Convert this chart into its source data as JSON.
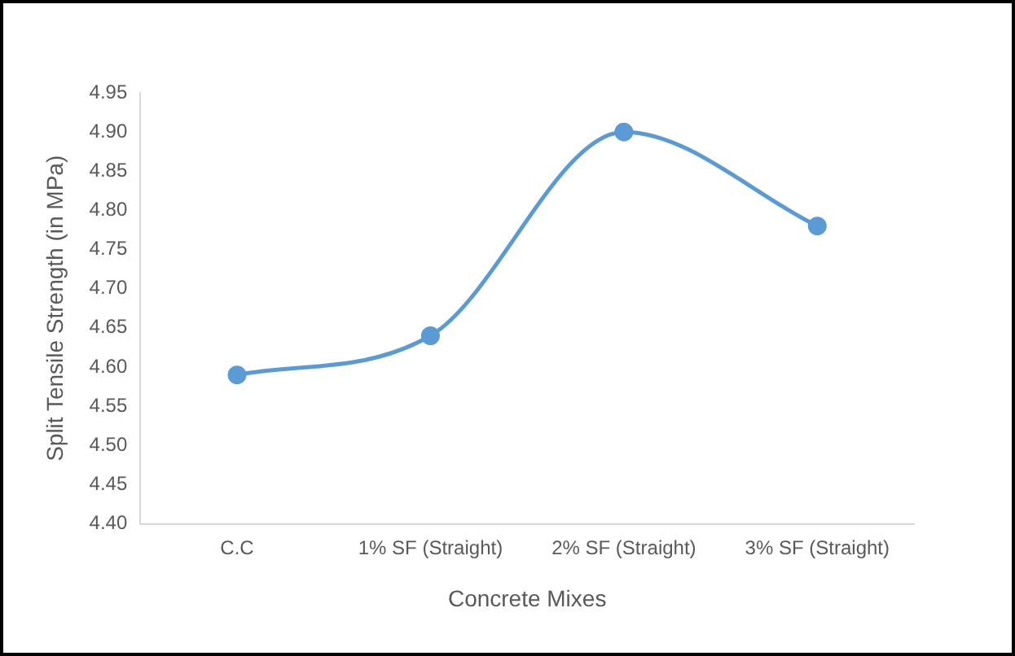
{
  "chart_data": {
    "type": "line",
    "xlabel": "Concrete Mixes",
    "ylabel": "Split Tensile Strength (in MPa)",
    "categories": [
      "C.C",
      "1% SF (Straight)",
      "2% SF (Straight)",
      "3% SF (Straight)"
    ],
    "series": [
      {
        "color": "#5b9bd5",
        "values": [
          4.59,
          4.64,
          4.9,
          4.78
        ]
      }
    ],
    "ylim": [
      4.4,
      4.95
    ],
    "yticks": [
      {
        "value": 4.4,
        "label": "4.40"
      },
      {
        "value": 4.45,
        "label": "4.45"
      },
      {
        "value": 4.5,
        "label": "4.50"
      },
      {
        "value": 4.55,
        "label": "4.55"
      },
      {
        "value": 4.6,
        "label": "4.60"
      },
      {
        "value": 4.65,
        "label": "4.65"
      },
      {
        "value": 4.7,
        "label": "4.70"
      },
      {
        "value": 4.75,
        "label": "4.75"
      },
      {
        "value": 4.8,
        "label": "4.80"
      },
      {
        "value": 4.85,
        "label": "4.85"
      },
      {
        "value": 4.9,
        "label": "4.90"
      },
      {
        "value": 4.95,
        "label": "4.95"
      }
    ],
    "grid": false,
    "legend": false,
    "marker": "circle",
    "line_style": "solid"
  }
}
